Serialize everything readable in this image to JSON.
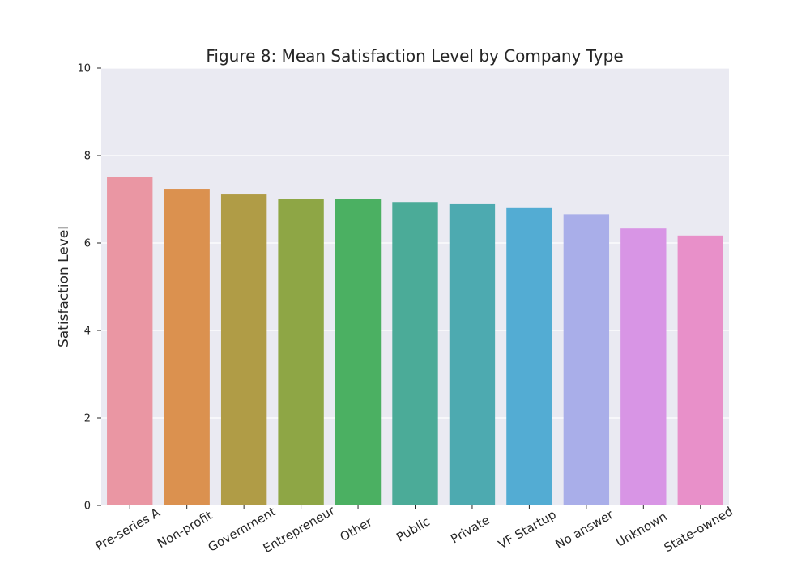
{
  "chart_data": {
    "type": "bar",
    "title": "Figure 8: Mean Satisfaction Level by Company Type",
    "xlabel": "",
    "ylabel": "Satisfaction Level",
    "ylim": [
      0,
      10
    ],
    "yticks": [
      "0",
      "2",
      "4",
      "6",
      "8",
      "10"
    ],
    "grid": true,
    "categories": [
      "Pre-series A",
      "Non-profit",
      "Government",
      "Entrepreneur",
      "Other",
      "Public",
      "Private",
      "VF Startup",
      "No answer",
      "Unknown",
      "State-owned"
    ],
    "values": [
      7.5,
      7.24,
      7.11,
      7.0,
      7.0,
      6.94,
      6.89,
      6.8,
      6.66,
      6.33,
      6.17
    ],
    "colors": [
      "#ea96a3",
      "#db914f",
      "#b09c46",
      "#8ea645",
      "#4bb062",
      "#4bab98",
      "#4daab0",
      "#53acd3",
      "#a9aee9",
      "#d895e5",
      "#e890c9"
    ]
  }
}
